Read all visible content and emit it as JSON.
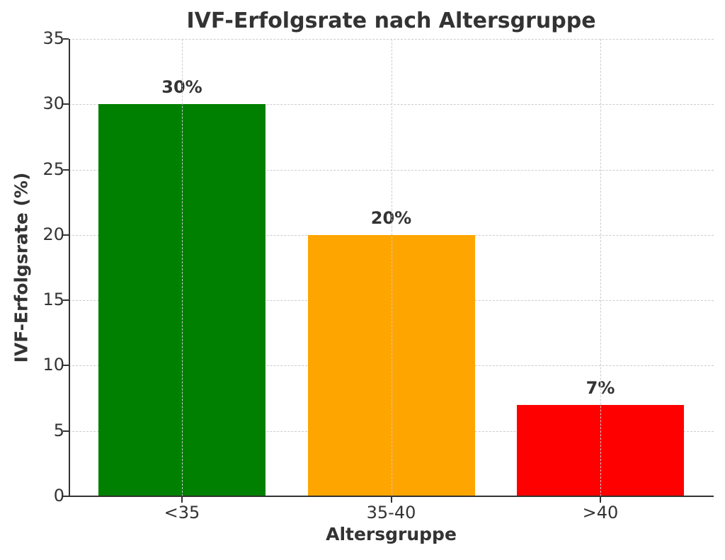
{
  "chart_data": {
    "type": "bar",
    "title": "IVF-Erfolgsrate nach Altersgruppe",
    "xlabel": "Altersgruppe",
    "ylabel": "IVF-Erfolgsrate (%)",
    "categories": [
      "<35",
      "35-40",
      ">40"
    ],
    "values": [
      30,
      20,
      7
    ],
    "bar_labels": [
      "30%",
      "20%",
      "7%"
    ],
    "colors": [
      "#008000",
      "#FFA500",
      "#FF0000"
    ],
    "ylim": [
      0,
      35
    ],
    "yticks": [
      0,
      5,
      10,
      15,
      20,
      25,
      30,
      35
    ],
    "grid": true,
    "grid_style": "dashed",
    "legend": null
  }
}
